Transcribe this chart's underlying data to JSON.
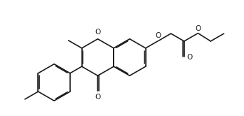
{
  "bg_color": "#ffffff",
  "line_color": "#1a1a1a",
  "line_width": 1.2,
  "dbo": 0.013,
  "figsize": [
    3.48,
    1.66
  ],
  "dpi": 100,
  "xlim": [
    0,
    3.48
  ],
  "ylim": [
    0,
    1.66
  ]
}
